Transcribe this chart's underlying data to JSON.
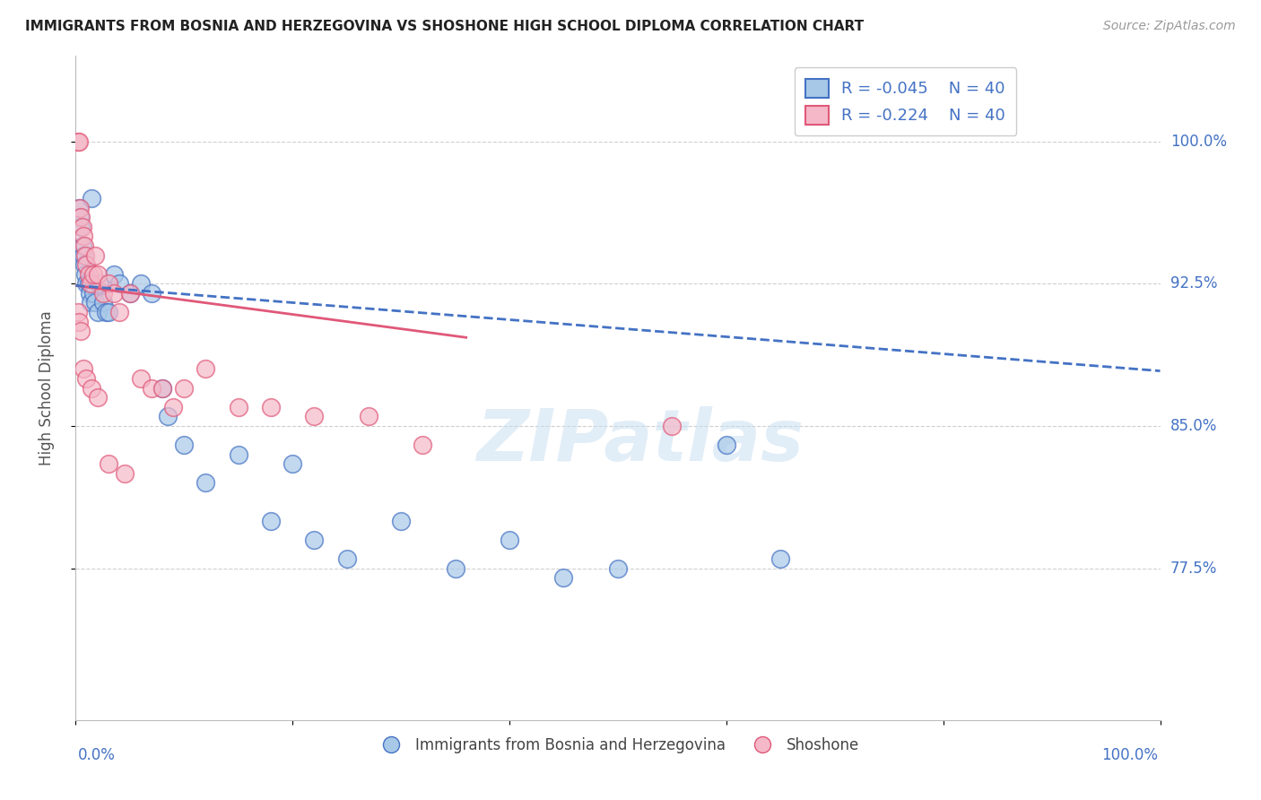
{
  "title": "IMMIGRANTS FROM BOSNIA AND HERZEGOVINA VS SHOSHONE HIGH SCHOOL DIPLOMA CORRELATION CHART",
  "source": "Source: ZipAtlas.com",
  "ylabel": "High School Diploma",
  "ytick_labels": [
    "77.5%",
    "85.0%",
    "92.5%",
    "100.0%"
  ],
  "ytick_values": [
    0.775,
    0.85,
    0.925,
    1.0
  ],
  "xmin": 0.0,
  "xmax": 1.0,
  "ymin": 0.695,
  "ymax": 1.045,
  "legend_r_blue": "R = -0.045",
  "legend_n_blue": "N = 40",
  "legend_r_pink": "R = -0.224",
  "legend_n_pink": "N = 40",
  "blue_color": "#a8c8e8",
  "pink_color": "#f5b8c8",
  "trendline_blue_color": "#4472c4",
  "trendline_pink_color": "#e05878",
  "watermark": "ZIPatlas",
  "blue_x": [
    0.003,
    0.004,
    0.005,
    0.006,
    0.007,
    0.008,
    0.009,
    0.01,
    0.012,
    0.013,
    0.014,
    0.015,
    0.016,
    0.018,
    0.02,
    0.022,
    0.025,
    0.028,
    0.03,
    0.035,
    0.04,
    0.05,
    0.06,
    0.07,
    0.08,
    0.085,
    0.1,
    0.12,
    0.15,
    0.18,
    0.2,
    0.22,
    0.25,
    0.3,
    0.35,
    0.4,
    0.45,
    0.5,
    0.6,
    0.65
  ],
  "blue_y": [
    0.965,
    0.96,
    0.955,
    0.945,
    0.94,
    0.935,
    0.93,
    0.925,
    0.925,
    0.92,
    0.915,
    0.97,
    0.92,
    0.915,
    0.91,
    0.925,
    0.915,
    0.91,
    0.91,
    0.93,
    0.925,
    0.92,
    0.925,
    0.92,
    0.87,
    0.855,
    0.84,
    0.82,
    0.835,
    0.8,
    0.83,
    0.79,
    0.78,
    0.8,
    0.775,
    0.79,
    0.77,
    0.775,
    0.84,
    0.78
  ],
  "pink_x": [
    0.002,
    0.003,
    0.004,
    0.005,
    0.006,
    0.007,
    0.008,
    0.009,
    0.01,
    0.012,
    0.014,
    0.016,
    0.018,
    0.02,
    0.025,
    0.03,
    0.035,
    0.04,
    0.05,
    0.06,
    0.07,
    0.08,
    0.09,
    0.1,
    0.12,
    0.15,
    0.18,
    0.22,
    0.27,
    0.32,
    0.002,
    0.003,
    0.005,
    0.007,
    0.01,
    0.015,
    0.02,
    0.03,
    0.045,
    0.55
  ],
  "pink_y": [
    1.0,
    1.0,
    0.965,
    0.96,
    0.955,
    0.95,
    0.945,
    0.94,
    0.935,
    0.93,
    0.925,
    0.93,
    0.94,
    0.93,
    0.92,
    0.925,
    0.92,
    0.91,
    0.92,
    0.875,
    0.87,
    0.87,
    0.86,
    0.87,
    0.88,
    0.86,
    0.86,
    0.855,
    0.855,
    0.84,
    0.91,
    0.905,
    0.9,
    0.88,
    0.875,
    0.87,
    0.865,
    0.83,
    0.825,
    0.85
  ],
  "background_color": "#ffffff",
  "grid_color": "#d0d0d0",
  "trendline_blue_y_start": 0.924,
  "trendline_blue_y_end": 0.879,
  "trendline_pink_y_start": 0.924,
  "trendline_pink_y_end": 0.848
}
